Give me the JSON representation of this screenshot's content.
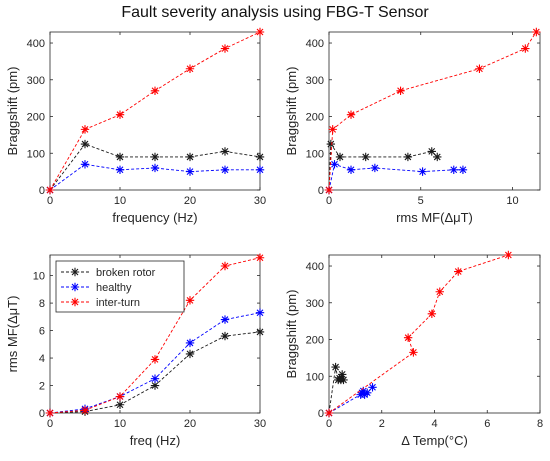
{
  "figure": {
    "title": "Fault severity analysis using FBG-T Sensor"
  },
  "colors": {
    "broken_rotor": "#1a1a1a",
    "healthy": "#0000ff",
    "inter_turn": "#ff0000",
    "axis": "#262626"
  },
  "chart_data": [
    {
      "type": "line",
      "title": "",
      "xlabel": "frequency (Hz)",
      "ylabel": "Braggshift (pm)",
      "xlim": [
        0,
        30
      ],
      "ylim": [
        0,
        430
      ],
      "xticks": [
        0,
        10,
        20,
        30
      ],
      "yticks": [
        0,
        100,
        200,
        300,
        400
      ],
      "series": [
        {
          "key": "broken_rotor",
          "x": [
            0,
            5,
            10,
            15,
            20,
            25,
            30
          ],
          "y": [
            0,
            125,
            90,
            90,
            90,
            105,
            90
          ]
        },
        {
          "key": "healthy",
          "x": [
            0,
            5,
            10,
            15,
            20,
            25,
            30
          ],
          "y": [
            0,
            70,
            55,
            60,
            50,
            55,
            55
          ]
        },
        {
          "key": "inter_turn",
          "x": [
            0,
            5,
            10,
            15,
            20,
            25,
            30
          ],
          "y": [
            0,
            165,
            205,
            270,
            330,
            385,
            430
          ]
        }
      ]
    },
    {
      "type": "line",
      "title": "",
      "xlabel": "rms MF(ΔμT)",
      "ylabel": "Braggshift (pm)",
      "xlim": [
        0,
        11.5
      ],
      "ylim": [
        0,
        430
      ],
      "xticks": [
        0,
        5,
        10
      ],
      "yticks": [
        0,
        100,
        200,
        300,
        400
      ],
      "series": [
        {
          "key": "broken_rotor",
          "x": [
            0,
            0.1,
            0.6,
            2.0,
            4.3,
            5.6,
            5.9
          ],
          "y": [
            0,
            125,
            90,
            90,
            90,
            105,
            90
          ]
        },
        {
          "key": "healthy",
          "x": [
            0,
            0.3,
            1.2,
            2.5,
            5.1,
            6.8,
            7.3
          ],
          "y": [
            0,
            70,
            55,
            60,
            50,
            55,
            55
          ]
        },
        {
          "key": "inter_turn",
          "x": [
            0,
            0.2,
            1.2,
            3.9,
            8.2,
            10.7,
            11.3
          ],
          "y": [
            0,
            165,
            205,
            270,
            330,
            385,
            430
          ]
        }
      ]
    },
    {
      "type": "line",
      "title": "",
      "xlabel": "freq (Hz)",
      "ylabel": "rms MF(ΔμT)",
      "xlim": [
        0,
        30
      ],
      "ylim": [
        0,
        11.5
      ],
      "xticks": [
        0,
        10,
        20,
        30
      ],
      "yticks": [
        0,
        2,
        4,
        6,
        8,
        10
      ],
      "legend": {
        "placement": "top-left"
      },
      "series": [
        {
          "key": "broken_rotor",
          "name": "broken rotor",
          "x": [
            0,
            5,
            10,
            15,
            20,
            25,
            30
          ],
          "y": [
            0,
            0.1,
            0.6,
            2.0,
            4.3,
            5.6,
            5.9
          ]
        },
        {
          "key": "healthy",
          "name": "healthy",
          "x": [
            0,
            5,
            10,
            15,
            20,
            25,
            30
          ],
          "y": [
            0,
            0.3,
            1.2,
            2.5,
            5.1,
            6.8,
            7.3
          ]
        },
        {
          "key": "inter_turn",
          "name": "inter-turn",
          "x": [
            0,
            5,
            10,
            15,
            20,
            25,
            30
          ],
          "y": [
            0,
            0.2,
            1.2,
            3.9,
            8.2,
            10.7,
            11.3
          ]
        }
      ]
    },
    {
      "type": "line",
      "title": "",
      "xlabel": "Δ Temp(°C)",
      "ylabel": "Braggshift (pm)",
      "xlim": [
        0,
        8
      ],
      "ylim": [
        0,
        430
      ],
      "xticks": [
        0,
        2,
        4,
        6,
        8
      ],
      "yticks": [
        0,
        100,
        200,
        300,
        400
      ],
      "series": [
        {
          "key": "broken_rotor",
          "x": [
            0,
            0.25,
            0.35,
            0.4,
            0.45,
            0.5,
            0.55
          ],
          "y": [
            0,
            125,
            90,
            95,
            90,
            105,
            90
          ]
        },
        {
          "key": "healthy",
          "x": [
            0,
            1.2,
            1.25,
            1.3,
            1.35,
            1.45,
            1.65
          ],
          "y": [
            0,
            50,
            55,
            60,
            50,
            55,
            70
          ]
        },
        {
          "key": "inter_turn",
          "x": [
            0,
            3.2,
            3.0,
            3.9,
            4.2,
            4.9,
            6.8
          ],
          "y": [
            0,
            165,
            205,
            270,
            330,
            385,
            430
          ]
        }
      ]
    }
  ]
}
